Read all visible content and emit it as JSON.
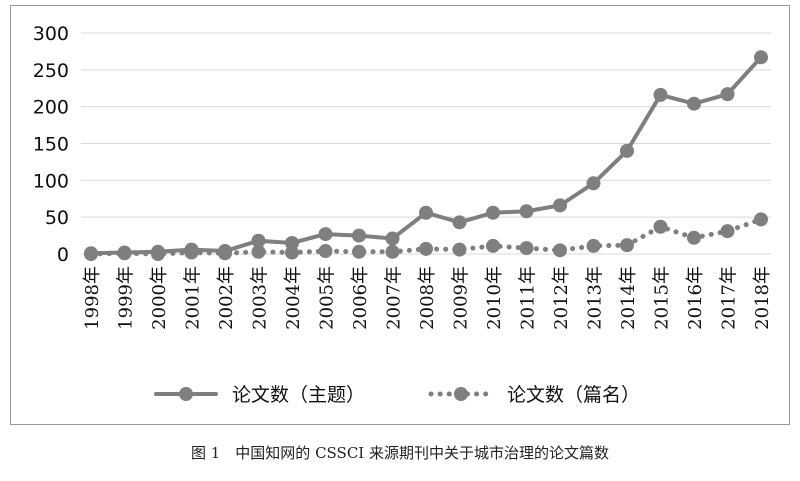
{
  "caption": "图 1　中国知网的 CSSCI 来源期刊中关于城市治理的论文篇数",
  "chart_data": {
    "type": "line",
    "title": "",
    "xlabel": "",
    "ylabel": "",
    "categories": [
      "1998年",
      "1999年",
      "2000年",
      "2001年",
      "2002年",
      "2003年",
      "2004年",
      "2005年",
      "2006年",
      "2007年",
      "2008年",
      "2009年",
      "2010年",
      "2011年",
      "2012年",
      "2013年",
      "2014年",
      "2015年",
      "2016年",
      "2017年",
      "2018年"
    ],
    "ylim": [
      0,
      300
    ],
    "yticks": [
      "0",
      "50",
      "100",
      "150",
      "200",
      "250",
      "300"
    ],
    "grid": true,
    "legend_position": "bottom",
    "series": [
      {
        "name": "论文数（主题）",
        "style": "solid",
        "values": [
          1,
          2,
          3,
          6,
          4,
          18,
          15,
          27,
          25,
          21,
          56,
          43,
          56,
          58,
          66,
          96,
          140,
          216,
          204,
          217,
          267
        ]
      },
      {
        "name": "论文数（篇名）",
        "style": "dotted",
        "values": [
          0,
          1,
          0,
          2,
          1,
          3,
          2,
          4,
          3,
          3,
          7,
          6,
          11,
          8,
          5,
          11,
          12,
          37,
          22,
          31,
          47
        ]
      }
    ],
    "colors": {
      "line": "#7f7f7f",
      "grid": "#d9d9d9",
      "axis_text": "#111111"
    }
  }
}
